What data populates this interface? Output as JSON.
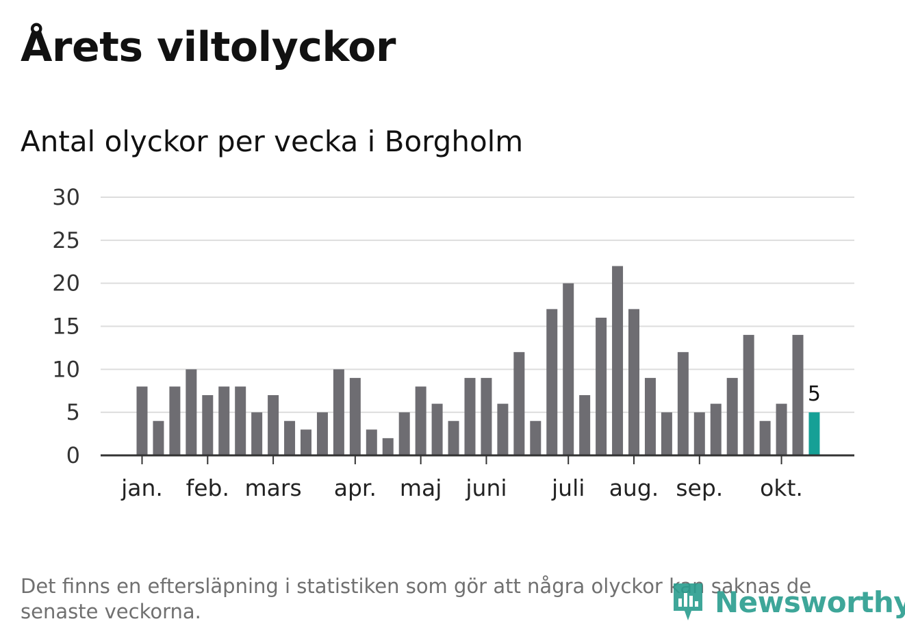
{
  "title": "Årets viltolyckor",
  "subtitle": "Antal olyckor per vecka i Borgholm",
  "footnote": "Det finns en eftersläpning i statistiken som gör att några olyckor kan saknas de senaste veckorna.",
  "brand": {
    "name": "Newsworthy",
    "color": "#2a9d8f",
    "icon": "bar-chart-speech-bubble-icon"
  },
  "colors": {
    "bar": "#6e6d72",
    "highlight": "#16a096",
    "grid": "#dddddd",
    "axis": "#333333"
  },
  "chart_data": {
    "type": "bar",
    "x": [
      1,
      2,
      3,
      4,
      5,
      6,
      7,
      8,
      9,
      10,
      11,
      12,
      13,
      14,
      15,
      16,
      17,
      18,
      19,
      20,
      21,
      22,
      23,
      24,
      25,
      26,
      27,
      28,
      29,
      30,
      31,
      32,
      33,
      34,
      35,
      36,
      37,
      38,
      39,
      40,
      41,
      42
    ],
    "values": [
      8,
      4,
      8,
      10,
      7,
      8,
      8,
      5,
      7,
      4,
      3,
      5,
      10,
      9,
      3,
      2,
      5,
      8,
      6,
      4,
      9,
      9,
      6,
      12,
      4,
      17,
      20,
      7,
      16,
      22,
      17,
      9,
      5,
      12,
      5,
      6,
      9,
      14,
      4,
      6,
      14,
      5
    ],
    "highlight_index": 41,
    "highlight_label": "5",
    "ylim": [
      0,
      30
    ],
    "yticks": [
      "0",
      "5",
      "10",
      "15",
      "20",
      "25",
      "30"
    ],
    "month_ticks": [
      {
        "label": "jan.",
        "week": 1
      },
      {
        "label": "feb.",
        "week": 5
      },
      {
        "label": "mars",
        "week": 9
      },
      {
        "label": "apr.",
        "week": 14
      },
      {
        "label": "maj",
        "week": 18
      },
      {
        "label": "juni",
        "week": 22
      },
      {
        "label": "juli",
        "week": 27
      },
      {
        "label": "aug.",
        "week": 31
      },
      {
        "label": "sep.",
        "week": 35
      },
      {
        "label": "okt.",
        "week": 40
      }
    ],
    "xlabel": "",
    "ylabel": "",
    "grid": true
  }
}
